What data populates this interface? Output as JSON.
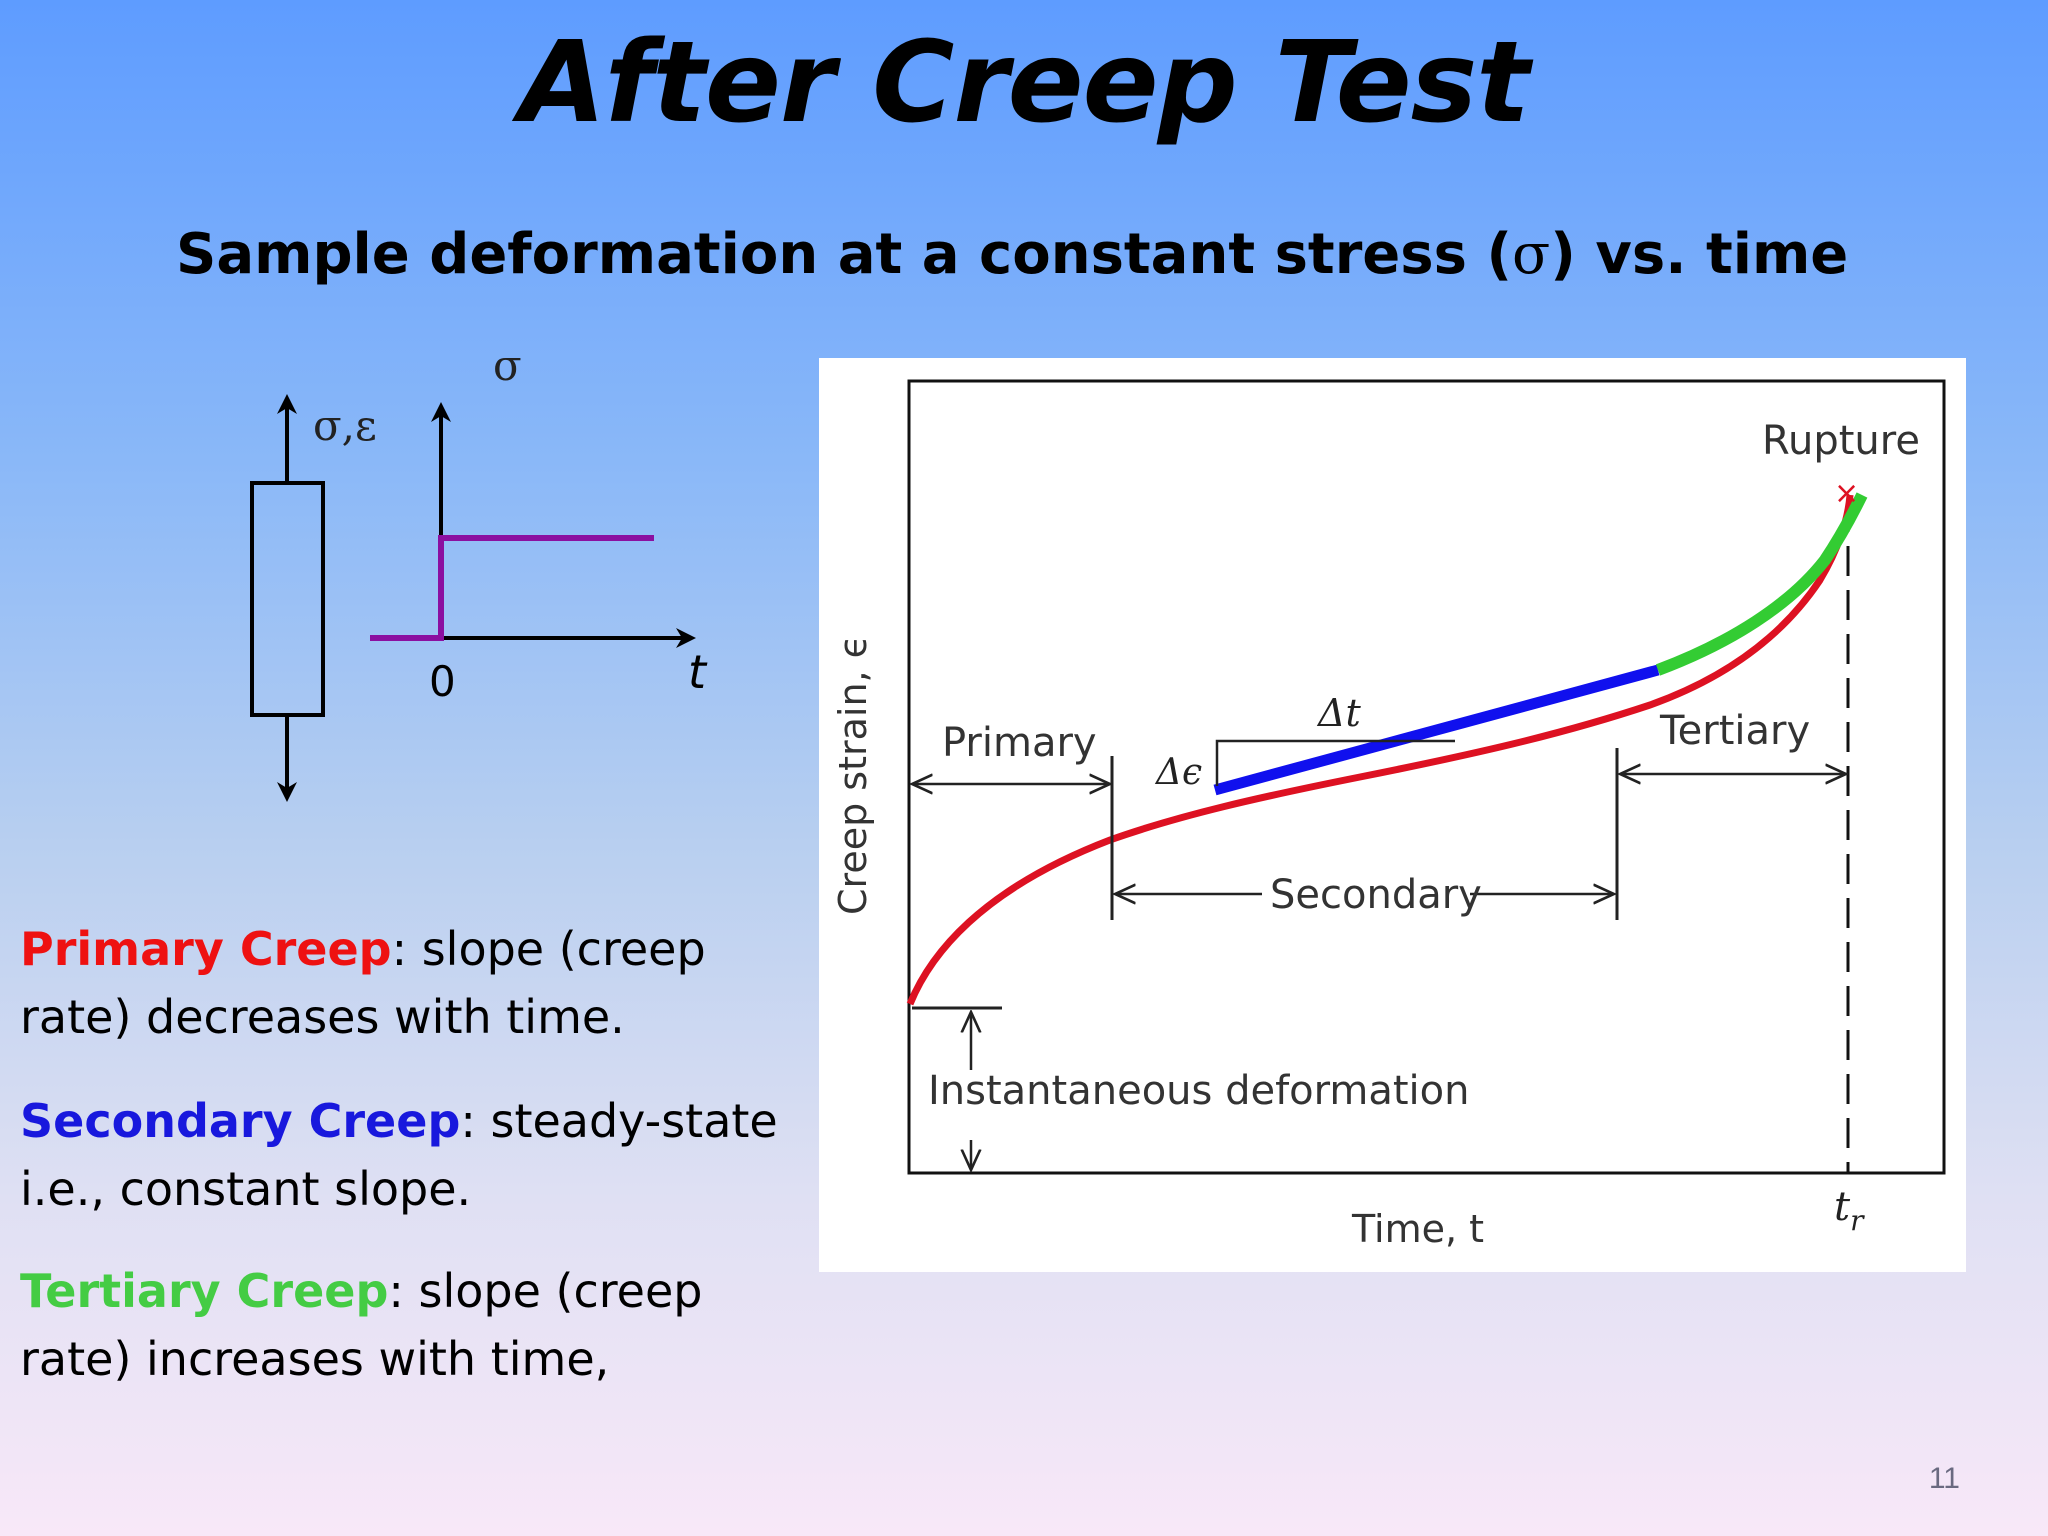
{
  "slide": {
    "title": "After Creep Test",
    "subtitle_prefix": "Sample deformation at a constant stress (",
    "subtitle_symbol": "σ",
    "subtitle_suffix": ") vs. time",
    "page_number": "11"
  },
  "schematic": {
    "specimen_axis_label": "σ,ε",
    "stress_axis_label": "σ",
    "origin_label": "0",
    "time_label": "t",
    "stress_line_color": "#8b0fa0"
  },
  "descriptions": [
    {
      "term": "Primary Creep",
      "text": ": slope (creep rate) decreases with time.",
      "color": "#ee1111"
    },
    {
      "term": "Secondary Creep",
      "text": ": steady-state i.e., constant slope.",
      "color": "#1818dd"
    },
    {
      "term": "Tertiary Creep",
      "text": ": slope (creep rate) increases with time,",
      "color": "#44cc44"
    }
  ],
  "creep_chart": {
    "y_axis_label": "Creep strain, ϵ",
    "x_axis_label": "Time, t",
    "rupture_time_label": "t",
    "rupture_time_subscript": "r",
    "rupture_label": "Rupture",
    "primary_label": "Primary",
    "secondary_label": "Secondary",
    "tertiary_label": "Tertiary",
    "instantaneous_label": "Instantaneous deformation",
    "delta_t_label": "Δt",
    "delta_e_label": "Δϵ",
    "curve_color": "#dd1122",
    "secondary_highlight_color": "#1010ee",
    "tertiary_highlight_color": "#33cc33"
  }
}
